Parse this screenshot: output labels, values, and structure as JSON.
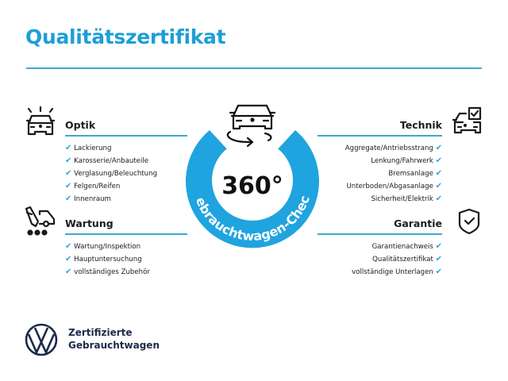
{
  "title": "Qualitätszertifikat",
  "colors": {
    "accent": "#1d9fd6",
    "ring": "#1fa4df",
    "rule": "#3aaccd",
    "brand": "#1c2a4a"
  },
  "check_mark": "✔",
  "badge": {
    "value": "360°",
    "arc_text": "Gebrauchtwagen-Check",
    "icon": "car-rotate-icon"
  },
  "sections": {
    "optik": {
      "heading": "Optik",
      "icon": "car-lights-icon",
      "items": [
        "Lackierung",
        "Karosserie/Anbauteile",
        "Verglasung/Beleuchtung",
        "Felgen/Reifen",
        "Innenraum"
      ]
    },
    "wartung": {
      "heading": "Wartung",
      "icon": "service-tools-icon",
      "items": [
        "Wartung/Inspektion",
        "Hauptuntersuchung",
        "vollständiges Zubehör"
      ]
    },
    "technik": {
      "heading": "Technik",
      "icon": "car-checklist-icon",
      "items": [
        "Aggregate/Antriebsstrang",
        "Lenkung/Fahrwerk",
        "Bremsanlage",
        "Unterboden/Abgasanlage",
        "Sicherheit/Elektrik"
      ]
    },
    "garantie": {
      "heading": "Garantie",
      "icon": "shield-check-icon",
      "items": [
        "Garantienachweis",
        "Qualitätszertifikat",
        "vollständige Unterlagen"
      ]
    }
  },
  "brand": {
    "line1": "Zertifizierte",
    "line2": "Gebrauchtwagen",
    "logo": "vw-logo-icon"
  }
}
